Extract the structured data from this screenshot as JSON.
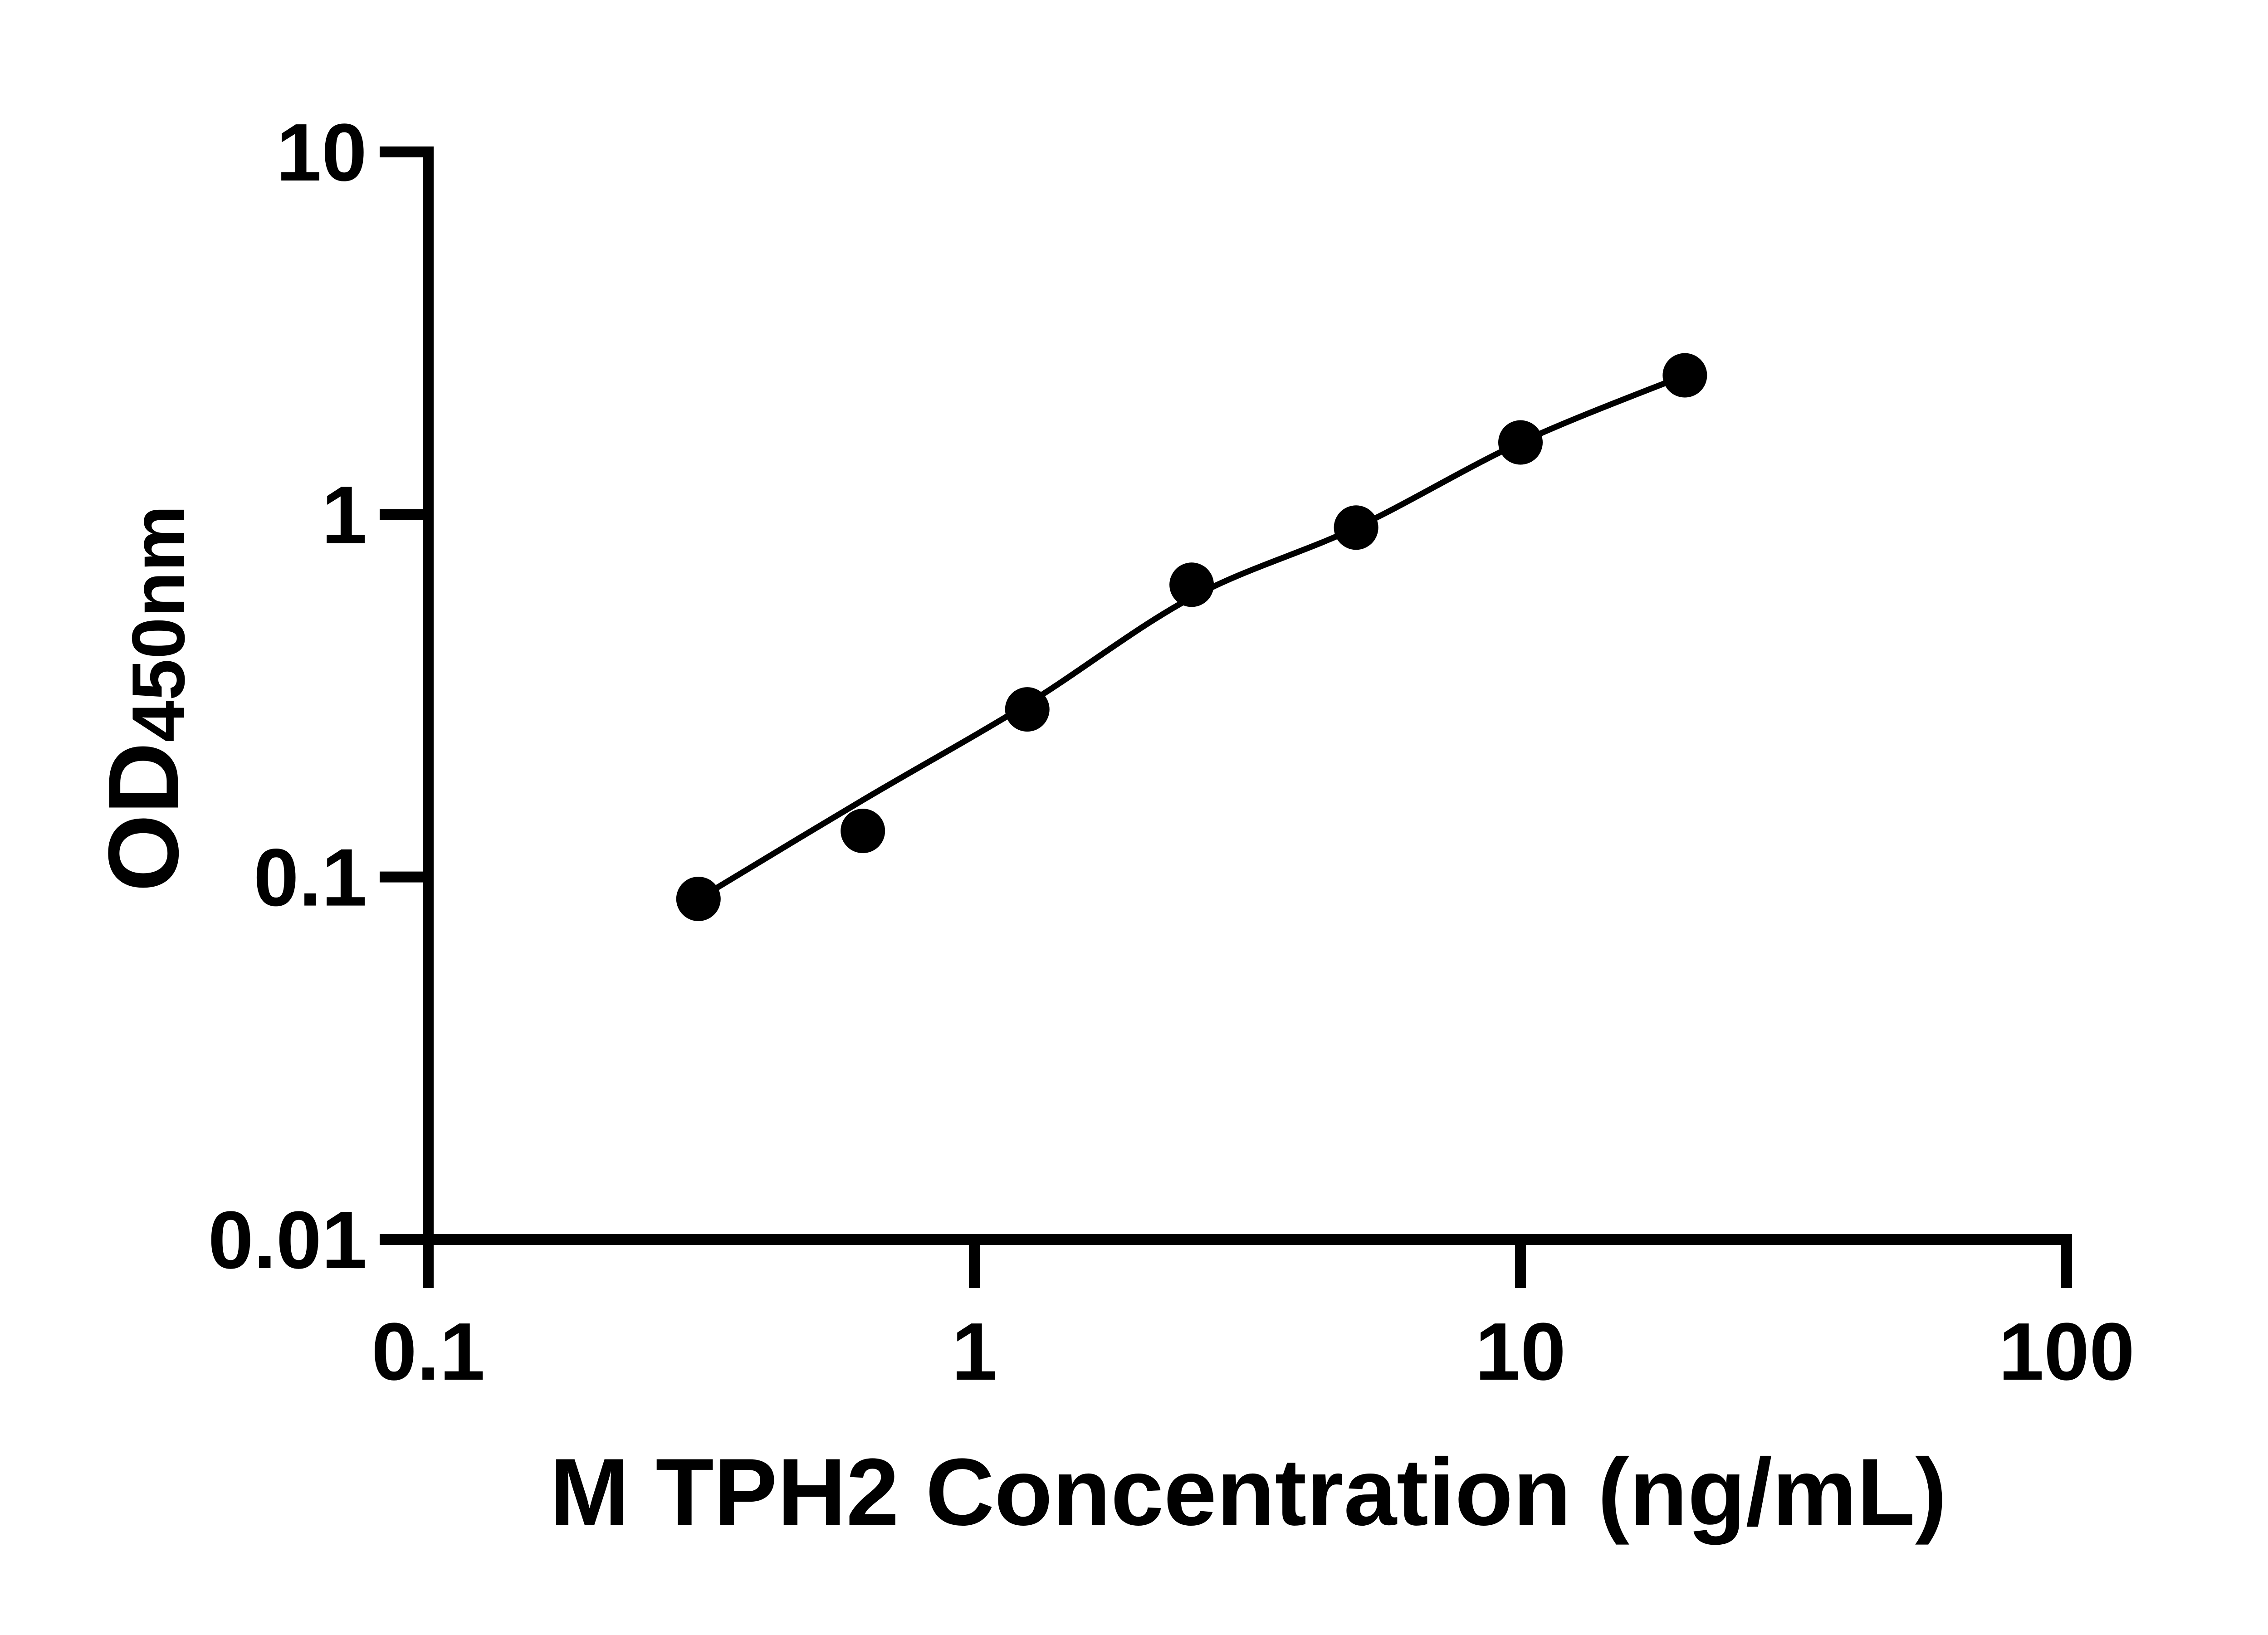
{
  "figure": {
    "background_color": "#ffffff",
    "ink_color": "#000000"
  },
  "chart_data": {
    "type": "scatter",
    "title": "",
    "xlabel": "M TPH2 Concentration (ng/mL)",
    "ylabel": "OD450nm",
    "ylabel_base": "OD",
    "ylabel_sub": "450nm",
    "x_scale": "log10",
    "y_scale": "log10",
    "xlim": [
      0.1,
      100
    ],
    "ylim": [
      0.01,
      10
    ],
    "x_ticks": [
      0.1,
      1,
      10,
      100
    ],
    "x_tick_labels": [
      "0.1",
      "1",
      "10",
      "100"
    ],
    "y_ticks": [
      10,
      1,
      0.1,
      0.01
    ],
    "y_tick_labels": [
      "10",
      "1",
      "0.1",
      "0.01"
    ],
    "grid": false,
    "legend": "none",
    "marker": "filled-circle",
    "marker_color": "#000000",
    "line_color": "#000000",
    "points": {
      "x": [
        0.3125,
        0.625,
        1.25,
        2.5,
        5,
        10,
        20
      ],
      "y": [
        0.087,
        0.134,
        0.29,
        0.64,
        0.92,
        1.58,
        2.42
      ]
    },
    "fit_curve": {
      "x": [
        0.3125,
        0.625,
        1.25,
        2.5,
        5,
        10,
        20
      ],
      "y": [
        0.087,
        0.163,
        0.3,
        0.59,
        0.92,
        1.58,
        2.42
      ]
    }
  }
}
